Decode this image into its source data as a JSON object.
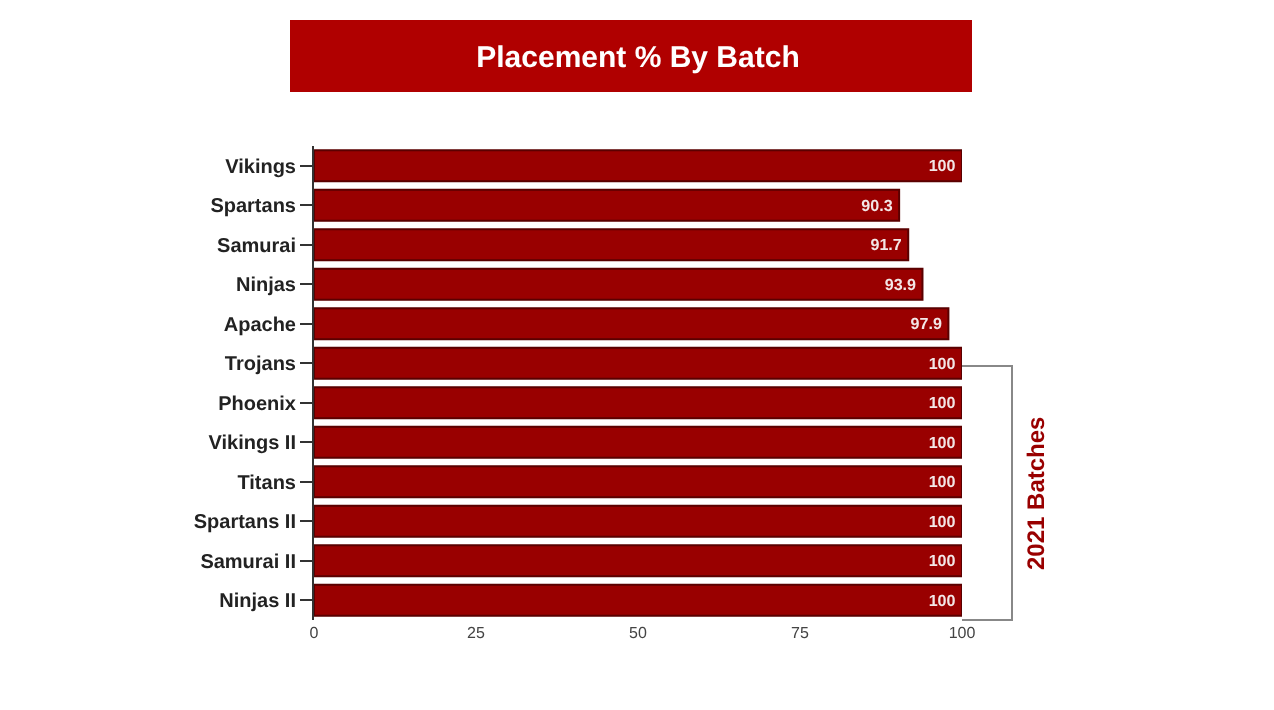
{
  "chart_data": {
    "type": "bar",
    "orientation": "horizontal",
    "title": "Placement % By Batch",
    "categories": [
      "Vikings",
      "Spartans",
      "Samurai",
      "Ninjas",
      "Apache",
      "Trojans",
      "Phoenix",
      "Vikings II",
      "Titans",
      "Spartans II",
      "Samurai II",
      "Ninjas II"
    ],
    "values": [
      100,
      90.3,
      91.7,
      93.9,
      97.9,
      100,
      100,
      100,
      100,
      100,
      100,
      100
    ],
    "color": "#990000",
    "data_labels": true,
    "xlim": [
      0,
      100
    ],
    "xticks": [
      0,
      25,
      50,
      75,
      100
    ],
    "annotations": [
      "2021 Batches"
    ]
  }
}
